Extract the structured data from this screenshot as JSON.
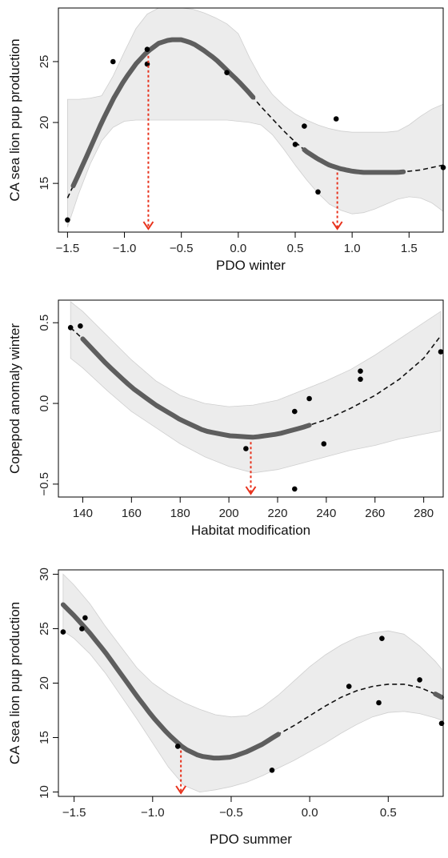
{
  "colors": {
    "band": "#ececec",
    "fit_solid": "#5e5e5e",
    "fit_dashed": "#111111",
    "points": "#000000",
    "arrows": "#e8321c",
    "frame": "#000000"
  },
  "chart_data": [
    {
      "type": "scatter",
      "xlabel": "PDO winter",
      "ylabel": "CA sea lion pup production",
      "xlim": [
        -1.58,
        1.8
      ],
      "ylim": [
        11.0,
        29.4
      ],
      "xticks": [
        -1.5,
        -1.0,
        -0.5,
        0.0,
        0.5,
        1.0,
        1.5
      ],
      "xtick_labels": [
        "−1.5",
        "−1.0",
        "−0.5",
        "0.0",
        "0.5",
        "1.0",
        "1.5"
      ],
      "yticks": [
        15,
        20,
        25
      ],
      "ytick_labels": [
        "15",
        "20",
        "25"
      ],
      "points": [
        {
          "x": -1.5,
          "y": 12.0
        },
        {
          "x": -1.1,
          "y": 25.0
        },
        {
          "x": -0.8,
          "y": 26.0
        },
        {
          "x": -0.8,
          "y": 24.8
        },
        {
          "x": -0.1,
          "y": 24.1
        },
        {
          "x": 0.5,
          "y": 18.2
        },
        {
          "x": 0.58,
          "y": 19.7
        },
        {
          "x": 0.7,
          "y": 14.3
        },
        {
          "x": 0.86,
          "y": 20.3
        },
        {
          "x": 1.8,
          "y": 16.3
        }
      ],
      "fit": {
        "x": [
          -1.5,
          -1.4,
          -1.3,
          -1.2,
          -1.1,
          -1.0,
          -0.9,
          -0.8,
          -0.7,
          -0.6,
          -0.5,
          -0.4,
          -0.3,
          -0.2,
          -0.1,
          0.0,
          0.1,
          0.2,
          0.3,
          0.4,
          0.5,
          0.6,
          0.7,
          0.8,
          0.9,
          1.0,
          1.1,
          1.2,
          1.3,
          1.4,
          1.5,
          1.6,
          1.7,
          1.8
        ],
        "y": [
          13.8,
          15.8,
          17.9,
          20.0,
          21.9,
          23.5,
          24.8,
          25.8,
          26.5,
          26.8,
          26.8,
          26.5,
          25.9,
          25.2,
          24.3,
          23.4,
          22.4,
          21.3,
          20.3,
          19.3,
          18.4,
          17.6,
          17.0,
          16.5,
          16.2,
          16.0,
          15.9,
          15.9,
          15.9,
          15.9,
          16.0,
          16.1,
          16.3,
          16.5
        ],
        "lower": [
          11.4,
          14.2,
          16.6,
          18.5,
          19.6,
          20.1,
          20.2,
          20.2,
          20.2,
          20.2,
          20.2,
          20.2,
          20.2,
          20.2,
          20.2,
          20.1,
          20.0,
          19.8,
          19.0,
          17.8,
          16.5,
          15.3,
          14.2,
          13.3,
          12.8,
          12.5,
          12.6,
          12.9,
          13.3,
          13.7,
          13.9,
          13.8,
          13.4,
          12.7
        ],
        "upper": [
          21.9,
          21.9,
          22.0,
          22.2,
          23.8,
          25.8,
          27.7,
          28.9,
          29.4,
          29.4,
          29.4,
          29.3,
          29.0,
          28.6,
          28.1,
          27.3,
          25.3,
          23.6,
          22.3,
          21.4,
          20.7,
          20.2,
          19.8,
          19.5,
          19.3,
          19.2,
          19.2,
          19.2,
          19.2,
          19.3,
          19.8,
          20.5,
          21.1,
          21.5
        ]
      },
      "solid_segments": [
        [
          -1.45,
          0.13
        ],
        [
          0.58,
          1.45
        ]
      ],
      "arrows_x": [
        -0.79,
        0.87
      ]
    },
    {
      "type": "scatter",
      "xlabel": "Habitat modification",
      "ylabel": "Copepod anomaly winter",
      "xlim": [
        130,
        288
      ],
      "ylim": [
        -0.58,
        0.64
      ],
      "xticks": [
        140,
        160,
        180,
        200,
        220,
        240,
        260,
        280
      ],
      "xtick_labels": [
        "140",
        "160",
        "180",
        "200",
        "220",
        "240",
        "260",
        "280"
      ],
      "yticks": [
        -0.5,
        0.0,
        0.5
      ],
      "ytick_labels": [
        "−0.5",
        "0.0",
        "0.5"
      ],
      "points": [
        {
          "x": 135,
          "y": 0.47
        },
        {
          "x": 139,
          "y": 0.48
        },
        {
          "x": 207,
          "y": -0.28
        },
        {
          "x": 227,
          "y": -0.05
        },
        {
          "x": 227,
          "y": -0.53
        },
        {
          "x": 233,
          "y": 0.03
        },
        {
          "x": 239,
          "y": -0.25
        },
        {
          "x": 254,
          "y": 0.2
        },
        {
          "x": 254,
          "y": 0.15
        },
        {
          "x": 287,
          "y": 0.32
        }
      ],
      "fit": {
        "x": [
          135,
          140,
          150,
          160,
          170,
          180,
          190,
          200,
          210,
          220,
          230,
          240,
          250,
          260,
          270,
          280,
          287
        ],
        "y": [
          0.47,
          0.4,
          0.24,
          0.1,
          -0.01,
          -0.1,
          -0.17,
          -0.2,
          -0.21,
          -0.19,
          -0.15,
          -0.1,
          -0.03,
          0.05,
          0.15,
          0.28,
          0.42
        ],
        "lower": [
          0.28,
          0.22,
          0.08,
          -0.05,
          -0.15,
          -0.25,
          -0.33,
          -0.39,
          -0.43,
          -0.41,
          -0.37,
          -0.33,
          -0.29,
          -0.26,
          -0.22,
          -0.19,
          -0.17
        ],
        "upper": [
          0.63,
          0.57,
          0.42,
          0.27,
          0.14,
          0.05,
          0.0,
          -0.02,
          -0.01,
          0.02,
          0.08,
          0.14,
          0.21,
          0.3,
          0.4,
          0.5,
          0.57
        ]
      },
      "solid_segments": [
        [
          140,
          233
        ]
      ],
      "arrows_x": [
        209
      ]
    },
    {
      "type": "scatter",
      "xlabel": "PDO summer",
      "ylabel": "CA sea lion pup production",
      "xlim": [
        -1.6,
        0.85
      ],
      "ylim": [
        9.6,
        30.4
      ],
      "xticks": [
        -1.5,
        -1.0,
        -0.5,
        0.0,
        0.5
      ],
      "xtick_labels": [
        "−1.5",
        "−1.0",
        "−0.5",
        "0.0",
        "0.5"
      ],
      "yticks": [
        10,
        15,
        20,
        25,
        30
      ],
      "ytick_labels": [
        "10",
        "15",
        "20",
        "25",
        "30"
      ],
      "points": [
        {
          "x": -1.57,
          "y": 24.7
        },
        {
          "x": -1.45,
          "y": 25.0
        },
        {
          "x": -1.43,
          "y": 26.0
        },
        {
          "x": -0.84,
          "y": 14.2
        },
        {
          "x": -0.24,
          "y": 12.0
        },
        {
          "x": 0.25,
          "y": 19.7
        },
        {
          "x": 0.44,
          "y": 18.2
        },
        {
          "x": 0.46,
          "y": 24.1
        },
        {
          "x": 0.7,
          "y": 20.3
        },
        {
          "x": 0.84,
          "y": 16.3
        }
      ],
      "fit": {
        "x": [
          -1.57,
          -1.5,
          -1.4,
          -1.3,
          -1.2,
          -1.1,
          -1.0,
          -0.9,
          -0.8,
          -0.7,
          -0.6,
          -0.5,
          -0.4,
          -0.3,
          -0.2,
          -0.1,
          0.0,
          0.1,
          0.2,
          0.3,
          0.4,
          0.5,
          0.6,
          0.7,
          0.8,
          0.84
        ],
        "y": [
          27.2,
          26.2,
          24.6,
          22.8,
          20.8,
          18.8,
          16.9,
          15.3,
          14.0,
          13.3,
          13.1,
          13.2,
          13.7,
          14.4,
          15.3,
          16.1,
          17.0,
          17.9,
          18.7,
          19.3,
          19.7,
          19.9,
          19.9,
          19.6,
          19.0,
          18.7
        ],
        "lower": [
          24.8,
          24.1,
          22.7,
          20.9,
          18.8,
          16.7,
          14.5,
          12.3,
          10.6,
          10.0,
          10.2,
          10.5,
          10.9,
          11.5,
          12.2,
          12.9,
          13.7,
          14.5,
          15.4,
          16.2,
          16.9,
          17.3,
          17.4,
          17.2,
          16.8,
          16.6
        ],
        "upper": [
          30.0,
          29.0,
          27.3,
          25.2,
          23.3,
          21.4,
          20.0,
          19.0,
          18.2,
          17.6,
          17.1,
          16.9,
          17.0,
          17.8,
          18.9,
          20.2,
          21.5,
          22.6,
          23.5,
          24.2,
          24.6,
          24.8,
          24.5,
          23.4,
          22.0,
          21.3
        ]
      },
      "solid_segments": [
        [
          -1.57,
          -0.2
        ],
        [
          0.8,
          0.84
        ]
      ],
      "arrows_x": [
        -0.82
      ]
    }
  ]
}
